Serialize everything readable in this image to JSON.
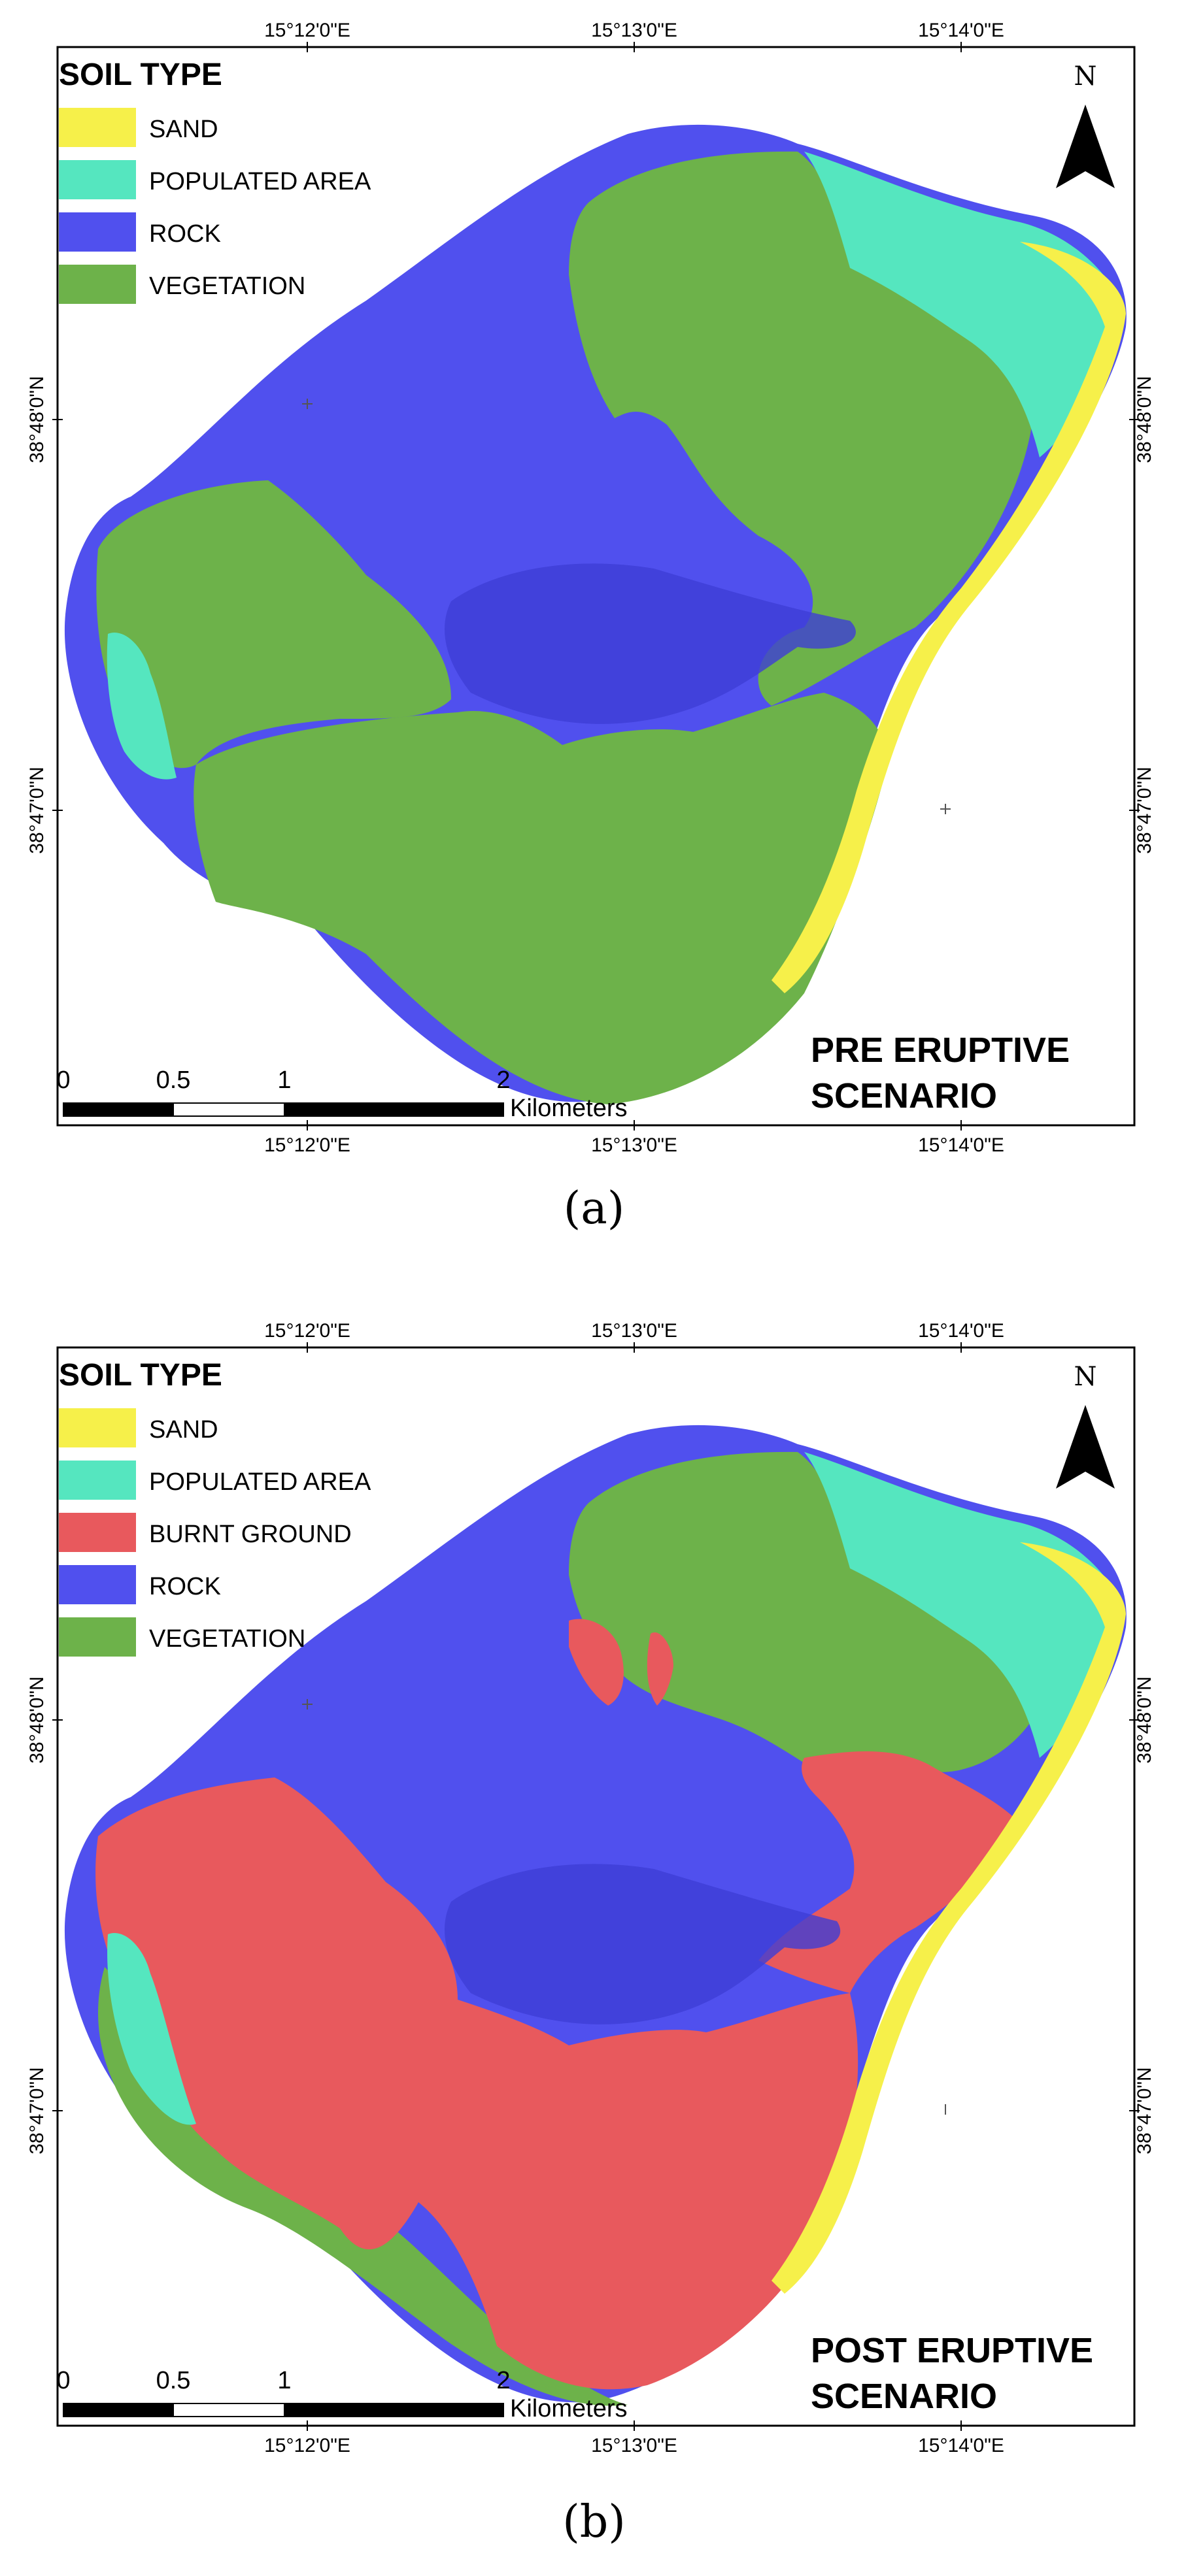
{
  "colors": {
    "sand": "#f6f04a",
    "populated_area": "#55e6bf",
    "burnt_ground": "#e8595d",
    "rock": "#5050ee",
    "vegetation": "#6db24a",
    "frame": "#000000"
  },
  "panels": [
    {
      "legend_title": "SOIL TYPE",
      "legend": [
        {
          "label": "SAND",
          "color": "#f6f04a"
        },
        {
          "label": "POPULATED AREA",
          "color": "#55e6bf"
        },
        {
          "label": "ROCK",
          "color": "#5050ee"
        },
        {
          "label": "VEGETATION",
          "color": "#6db24a"
        }
      ],
      "top_ticks": [
        "15°12'0\"E",
        "15°13'0\"E",
        "15°14'0\"E"
      ],
      "bottom_ticks": [
        "15°12'0\"E",
        "15°13'0\"E",
        "15°14'0\"E"
      ],
      "left_ticks": [
        "38°48'0\"N",
        "38°47'0\"N"
      ],
      "right_ticks": [
        "38°48'0\"N",
        "38°47'0\"N"
      ],
      "north_label": "N",
      "scale_labels": [
        "0",
        "0.5",
        "1",
        "2"
      ],
      "scale_unit": "Kilometers",
      "scenario_line1": "PRE ERUPTIVE",
      "scenario_line2": "SCENARIO",
      "caption": "(a)"
    },
    {
      "legend_title": "SOIL TYPE",
      "legend": [
        {
          "label": "SAND",
          "color": "#f6f04a"
        },
        {
          "label": "POPULATED AREA",
          "color": "#55e6bf"
        },
        {
          "label": "BURNT GROUND",
          "color": "#e8595d"
        },
        {
          "label": "ROCK",
          "color": "#5050ee"
        },
        {
          "label": "VEGETATION",
          "color": "#6db24a"
        }
      ],
      "top_ticks": [
        "15°12'0\"E",
        "15°13'0\"E",
        "15°14'0\"E"
      ],
      "bottom_ticks": [
        "15°12'0\"E",
        "15°13'0\"E",
        "15°14'0\"E"
      ],
      "left_ticks": [
        "38°48'0\"N",
        "38°47'0\"N"
      ],
      "right_ticks": [
        "38°48'0\"N",
        "38°47'0\"N"
      ],
      "north_label": "N",
      "scale_labels": [
        "0",
        "0.5",
        "1",
        "2"
      ],
      "scale_unit": "Kilometers",
      "scenario_line1": "POST ERUPTIVE",
      "scenario_line2": "SCENARIO",
      "caption": "(b)"
    }
  ]
}
